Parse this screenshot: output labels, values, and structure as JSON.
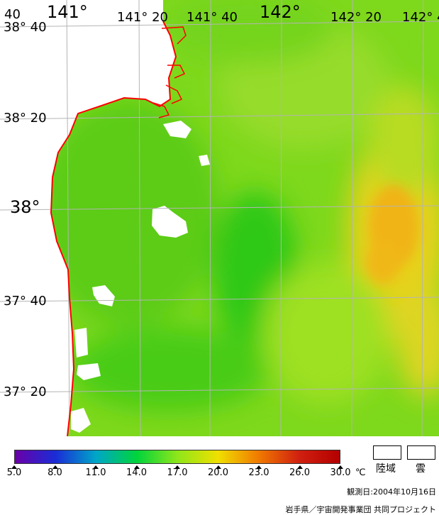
{
  "map": {
    "longitude_labels": [
      {
        "text": "141°",
        "big": true
      },
      {
        "text": "141° 20",
        "big": false
      },
      {
        "text": "141° 40",
        "big": false
      },
      {
        "text": "142°",
        "big": true
      },
      {
        "text": "142° 20",
        "big": false
      },
      {
        "text": "142° 4",
        "big": false
      }
    ],
    "corner_label": "40",
    "latitude_labels": [
      {
        "text": "38° 40",
        "big": false
      },
      {
        "text": "38° 20",
        "big": false
      },
      {
        "text": "38°",
        "big": true
      },
      {
        "text": "37° 40",
        "big": false
      },
      {
        "text": "37° 20",
        "big": false
      }
    ],
    "colors": {
      "grid": "#b4b4b4",
      "coastline": "#ff0000",
      "cloud_land": "#ffffff"
    }
  },
  "colorbar": {
    "ticks": [
      "5.0",
      "8.0",
      "11.0",
      "14.0",
      "17.0",
      "20.0",
      "23.0",
      "26.0",
      "30.0"
    ],
    "unit": "℃",
    "colors": [
      "#6a00a8",
      "#1a2cd6",
      "#00a6c8",
      "#00d43c",
      "#8ee61a",
      "#f0e000",
      "#f07a00",
      "#d02010",
      "#b40000"
    ]
  },
  "legend": {
    "land_label": "陸域",
    "cloud_label": "雲"
  },
  "footer": {
    "observation_date": "観測日:2004年10月16日",
    "credit": "岩手県／宇宙開発事業団 共同プロジェクト"
  }
}
